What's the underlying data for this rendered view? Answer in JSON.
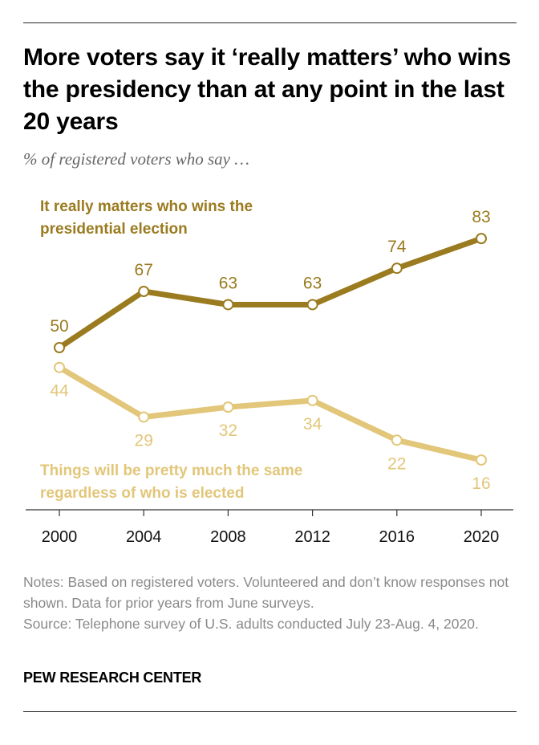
{
  "title": "More voters say it ‘really matters’ who wins the presidency than at any point in the last 20 years",
  "subtitle": "% of registered voters who say …",
  "notes": [
    "Notes: Based on registered voters. Volunteered and don’t know responses not shown. Data for prior years from June surveys.",
    "Source: Telephone survey of U.S. adults conducted July 23-Aug. 4, 2020."
  ],
  "brand": "PEW RESEARCH CENTER",
  "chart_data": {
    "type": "line",
    "x": [
      2000,
      2004,
      2008,
      2012,
      2016,
      2020
    ],
    "tick_labels": [
      "2000",
      "2004",
      "2008",
      "2012",
      "2016",
      "2020"
    ],
    "ylim": [
      0,
      100
    ],
    "grid": false,
    "legend": "inline labels",
    "series": [
      {
        "name_lines": [
          "It really matters who wins the",
          "presidential election"
        ],
        "values": [
          50,
          67,
          63,
          63,
          74,
          83
        ],
        "color": "#9a7b1f",
        "label_position": "above"
      },
      {
        "name_lines": [
          "Things will be pretty much the same",
          "regardless of who is elected"
        ],
        "values": [
          44,
          29,
          32,
          34,
          22,
          16
        ],
        "color": "#e2c679",
        "label_position": "below"
      }
    ]
  }
}
